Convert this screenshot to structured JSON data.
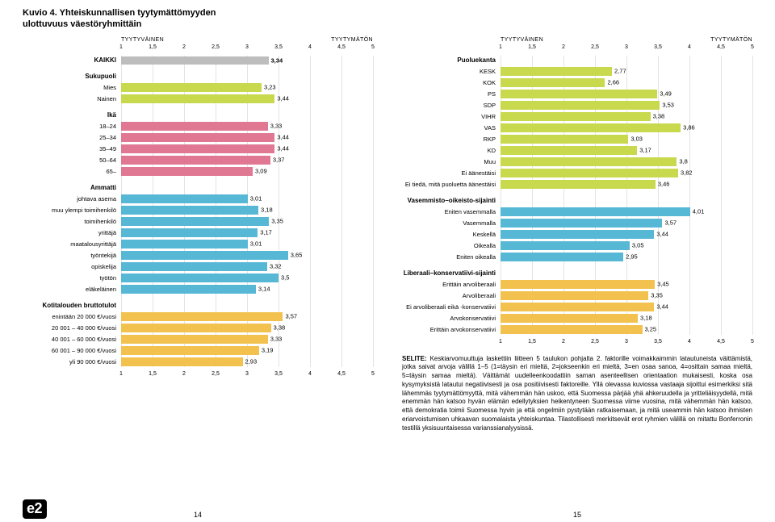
{
  "title_line1": "Kuvio 4. Yhteiskunnallisen tyytymättömyyden",
  "title_line2": "ulottuvuus väestöryhmittäin",
  "axis_left": "TYYTYVÄINEN",
  "axis_right": "TYYTYMÄTÖN",
  "xmin": 1,
  "xmax": 5,
  "xstep": 0.5,
  "ticks": [
    "1",
    "1,5",
    "2",
    "2,5",
    "3",
    "3,5",
    "4",
    "4,5",
    "5"
  ],
  "grid_color": "#e3e3e3",
  "colors": {
    "kaikki": "#bdbdbd",
    "sukupuoli": "#c9d94e",
    "ika": "#e07894",
    "ammatti": "#57b8d6",
    "tulo": "#f2c14e",
    "puolue": "#c9d94e",
    "vasoik": "#57b8d6",
    "libkon": "#f2c14e"
  },
  "left_groups": [
    {
      "header": "KAIKKI",
      "color": "kaikki",
      "items": [
        {
          "label": "",
          "value": 3.34
        }
      ]
    },
    {
      "header": "Sukupuoli",
      "color": "sukupuoli",
      "items": [
        {
          "label": "Mies",
          "value": 3.23
        },
        {
          "label": "Nainen",
          "value": 3.44
        }
      ]
    },
    {
      "header": "Ikä",
      "color": "ika",
      "items": [
        {
          "label": "18–24",
          "value": 3.33
        },
        {
          "label": "25–34",
          "value": 3.44
        },
        {
          "label": "35–49",
          "value": 3.44
        },
        {
          "label": "50–64",
          "value": 3.37
        },
        {
          "label": "65–",
          "value": 3.09
        }
      ]
    },
    {
      "header": "Ammatti",
      "color": "ammatti",
      "items": [
        {
          "label": "johtava asema",
          "value": 3.01
        },
        {
          "label": "muu ylempi toimihenkilö",
          "value": 3.18
        },
        {
          "label": "toimihenkilö",
          "value": 3.35
        },
        {
          "label": "yrittäjä",
          "value": 3.17
        },
        {
          "label": "maatalousyrittäjä",
          "value": 3.01
        },
        {
          "label": "työntekijä",
          "value": 3.65
        },
        {
          "label": "opiskelija",
          "value": 3.32
        },
        {
          "label": "työtön",
          "value": 3.5
        },
        {
          "label": "eläkeläinen",
          "value": 3.14
        }
      ]
    },
    {
      "header": "Kotitalouden bruttotulot",
      "color": "tulo",
      "items": [
        {
          "label": "enintään 20 000 €/vuosi",
          "value": 3.57
        },
        {
          "label": "20 001 – 40 000 €/vuosi",
          "value": 3.38
        },
        {
          "label": "40 001 – 60 000 €/vuosi",
          "value": 3.33
        },
        {
          "label": "60 001 – 90 000 €/vuosi",
          "value": 3.19
        },
        {
          "label": "yli 90 000 €/vuosi",
          "value": 2.93
        }
      ]
    }
  ],
  "right_groups": [
    {
      "header": "Puoluekanta",
      "color": "puolue",
      "items": [
        {
          "label": "KESK",
          "value": 2.77
        },
        {
          "label": "KOK",
          "value": 2.66
        },
        {
          "label": "PS",
          "value": 3.49
        },
        {
          "label": "SDP",
          "value": 3.53
        },
        {
          "label": "VIHR",
          "value": 3.38
        },
        {
          "label": "VAS",
          "value": 3.86
        },
        {
          "label": "RKP",
          "value": 3.03
        },
        {
          "label": "KD",
          "value": 3.17
        },
        {
          "label": "Muu",
          "value": 3.8
        },
        {
          "label": "Ei äänestäisi",
          "value": 3.82
        },
        {
          "label": "Ei tiedä, mitä puoluetta äänestäisi",
          "value": 3.46
        }
      ]
    },
    {
      "header": "Vasemmisto–oikeisto-sijainti",
      "color": "vasoik",
      "items": [
        {
          "label": "Eniten vasemmalla",
          "value": 4.01
        },
        {
          "label": "Vasemmalla",
          "value": 3.57
        },
        {
          "label": "Keskellä",
          "value": 3.44
        },
        {
          "label": "Oikealla",
          "value": 3.05
        },
        {
          "label": "Eniten oikealla",
          "value": 2.95
        }
      ]
    },
    {
      "header": "Liberaali–konservatiivi-sijainti",
      "color": "libkon",
      "items": [
        {
          "label": "Erittäin arvoliberaali",
          "value": 3.45
        },
        {
          "label": "Arvoliberaali",
          "value": 3.35
        },
        {
          "label": "Ei arvoliberaali eikä -konservatiivi",
          "value": 3.44
        },
        {
          "label": "Arvokonservatiivi",
          "value": 3.18
        },
        {
          "label": "Erittäin arvokonservatiivi",
          "value": 3.25
        }
      ]
    }
  ],
  "selite_head": "SELITE:",
  "selite_body": " Keskiarvomuuttuja laskettiin liitteen 5 taulukon pohjalta 2. faktorille voimakkaimmin latautuneista väittämistä, jotka saivat arvoja välillä 1–5 (1=täysin eri mieltä, 2=jokseenkin eri mieltä, 3=en osaa sanoa, 4=osittain samaa mieltä, 5=täysin samaa mieltä). Väittämät uudelleenkoodattiin saman asenteellisen orientaation mukaisesti, koska osa kysymyksistä latautui negatiivisesti ja osa positiivisesti faktoreille. Yllä olevassa kuviossa vastaaja sijoittui esimerkiksi sitä lähemmäs tyytymättömyyttä, mitä vähemmän hän uskoo, että Suomessa pärjää yhä ahkeruudella ja yritteliäisyydellä, mitä enemmän hän katsoo hyvän elämän edellytyksien heikentyneen Suomessa viime vuosina, mitä vähemmän hän katsoo, että demokratia toimii Suomessa hyvin ja että ongelmiin pystytään ratkaisemaan, ja mitä useammin hän katsoo ihmisten eriarvoistumisen uhkaavan suomalaista yhteiskuntaa. Tilastollisesti merkitsevät erot ryhmien välillä on mitattu Bonferronin testillä yksisuuntaisessa varianssianalyysissä.",
  "logo": "e2",
  "page_left": "14",
  "page_right": "15"
}
